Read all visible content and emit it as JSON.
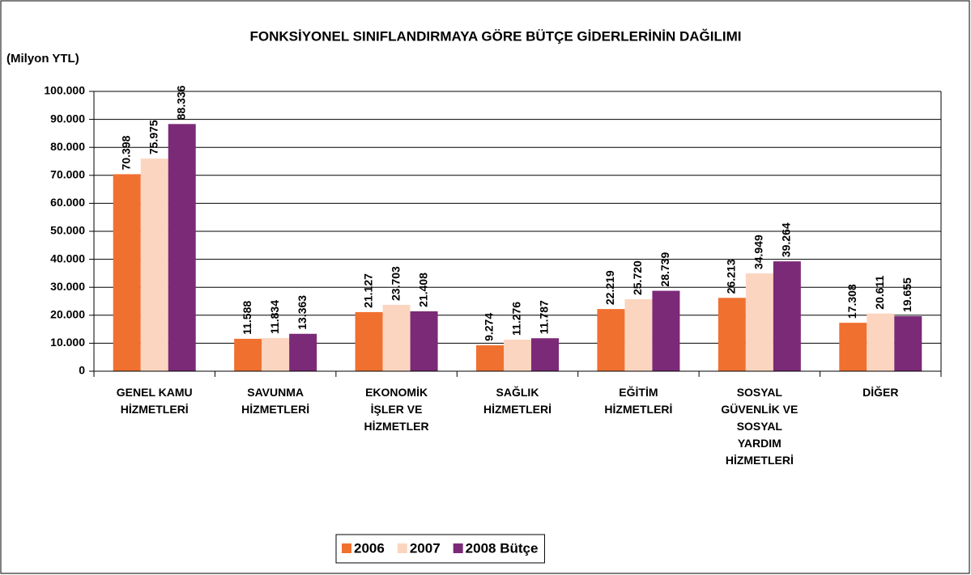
{
  "chart_data": {
    "type": "bar",
    "title": "FONKSİYONEL SINIFLANDIRMAYA GÖRE BÜTÇE GİDERLERİNİN DAĞILIMI",
    "y_label": "(Milyon YTL)",
    "categories": [
      "GENEL KAMU HİZMETLERİ",
      "SAVUNMA HİZMETLERİ",
      "EKONOMİK İŞLER VE HİZMETLER",
      "SAĞLIK HİZMETLERİ",
      "EĞİTİM HİZMETLERİ",
      "SOSYAL GÜVENLİK VE SOSYAL YARDIM HİZMETLERİ",
      "DİĞER"
    ],
    "series": [
      {
        "name": "2006",
        "color": "#f07030",
        "values": [
          70398,
          11588,
          21127,
          9274,
          22219,
          26213,
          17308
        ],
        "value_labels": [
          "70.398",
          "11.588",
          "21.127",
          "9.274",
          "22.219",
          "26.213",
          "17.308"
        ]
      },
      {
        "name": "2007",
        "color": "#fcd5c0",
        "values": [
          75975,
          11834,
          23703,
          11276,
          25720,
          34949,
          20611
        ],
        "value_labels": [
          "75.975",
          "11.834",
          "23.703",
          "11.276",
          "25.720",
          "34.949",
          "20.611"
        ]
      },
      {
        "name": "2008 Bütçe",
        "color": "#7b2a78",
        "values": [
          88336,
          13363,
          21408,
          11787,
          28739,
          39264,
          19655
        ],
        "value_labels": [
          "88.336",
          "13.363",
          "21.408",
          "11.787",
          "28.739",
          "39.264",
          "19.655"
        ]
      }
    ],
    "ylim": [
      0,
      100000
    ],
    "yticks": [
      0,
      {
        "value": 10000,
        "label": "10.000"
      },
      {
        "value": 20000,
        "label": "20.000"
      },
      {
        "value": 30000,
        "label": "30.000"
      },
      {
        "value": 40000,
        "label": "40.000"
      },
      {
        "value": 50000,
        "label": "50.000"
      },
      {
        "value": 60000,
        "label": "60.000"
      },
      {
        "value": 70000,
        "label": "70.000"
      },
      {
        "value": 80000,
        "label": "80.000"
      },
      {
        "value": 90000,
        "label": "90.000"
      },
      {
        "value": 100000,
        "label": "100.000"
      }
    ],
    "grid": true,
    "legend": "bottom"
  }
}
